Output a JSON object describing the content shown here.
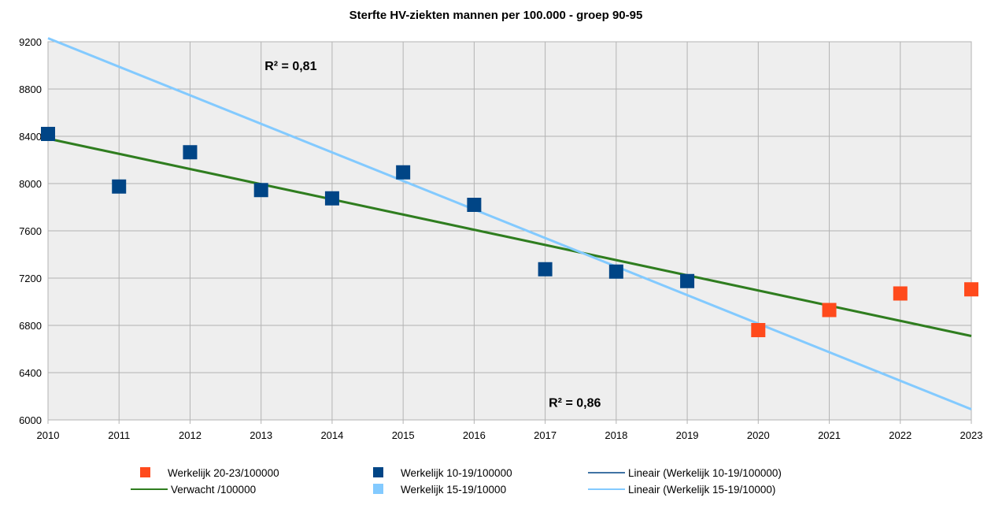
{
  "chart_data": {
    "type": "scatter",
    "title": "Sterfte HV-ziekten mannen per 100.000 - groep 90-95",
    "xlabel": "",
    "ylabel": "",
    "x_ticks": [
      2010,
      2011,
      2012,
      2013,
      2014,
      2015,
      2016,
      2017,
      2018,
      2019,
      2020,
      2021,
      2022,
      2023
    ],
    "y_ticks": [
      6000,
      6400,
      6800,
      7200,
      7600,
      8000,
      8400,
      8800,
      9200
    ],
    "xlim": [
      2010,
      2023
    ],
    "ylim": [
      6000,
      9200
    ],
    "grid": true,
    "legend_position": "bottom",
    "series": [
      {
        "name": "Werkelijk 20-23/100000",
        "kind": "points",
        "color": "#ff4a1c",
        "x": [
          2020,
          2021,
          2022,
          2023
        ],
        "y": [
          6760,
          6930,
          7070,
          7105
        ]
      },
      {
        "name": "Werkelijk 10-19/100000",
        "kind": "points",
        "color": "#004586",
        "x": [
          2010,
          2011,
          2012,
          2013,
          2014,
          2015,
          2016,
          2017,
          2018,
          2019
        ],
        "y": [
          8420,
          7975,
          8265,
          7945,
          7875,
          8095,
          7820,
          7275,
          7255,
          7175
        ]
      },
      {
        "name": "Lineair (Werkelijk 10-19/100000)",
        "kind": "legend-line",
        "color": "#004586"
      },
      {
        "name": "Verwacht /100000",
        "kind": "line",
        "color": "#2f7d1f",
        "x": [
          2010,
          2023
        ],
        "y": [
          8380,
          6710
        ]
      },
      {
        "name": "Werkelijk 15-19/10000",
        "kind": "legend-point",
        "color": "#83caff"
      },
      {
        "name": "Lineair (Werkelijk 15-19/10000)",
        "kind": "line",
        "color": "#83caff",
        "x": [
          2010,
          2023
        ],
        "y": [
          9230,
          6090
        ]
      }
    ],
    "annotations": [
      {
        "text": "R² = 0,81",
        "x": 2013.05,
        "y": 9000
      },
      {
        "text": "R² = 0,86",
        "x": 2017.05,
        "y": 6150
      }
    ]
  }
}
